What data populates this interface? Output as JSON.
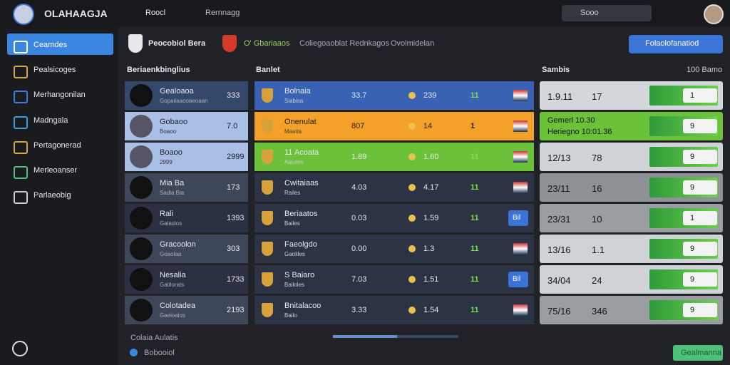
{
  "header": {
    "brand": "OLAHAAGJA",
    "nav": "Roocl",
    "tab": "Rernnagg",
    "search": "Sooo"
  },
  "sidebar": {
    "items": [
      "Ceamdes",
      "Pealsicoges",
      "Merhangonilan",
      "Madngala",
      "Pertagonerad",
      "Merleoanser",
      "Parlaeobig"
    ]
  },
  "subheader": {
    "team": "Peocobiol Bera",
    "tabs": [
      "O' Gbariaaos",
      "Coliegoaoblat Rednkagos",
      "Ovolmidelan"
    ],
    "button": "Folaolofanatiod"
  },
  "left": {
    "title": "Beriaenkbinglius",
    "rows": [
      {
        "name": "Gealoaoa",
        "sub": "Gopaiiaaooaeoaan",
        "value": "333"
      },
      {
        "name": "Gobaoo",
        "sub": "Boaoo",
        "value": "7.0"
      },
      {
        "name": "Boaoo",
        "sub": "2999",
        "value": "2999"
      },
      {
        "name": "Mia Ba",
        "sub": "Sadia Bia",
        "value": "173"
      },
      {
        "name": "Rali",
        "sub": "Galaslos",
        "value": "1393"
      },
      {
        "name": "Gracoolon",
        "sub": "Goaolaa",
        "value": "303"
      },
      {
        "name": "Nesalia",
        "sub": "Gatilorats",
        "value": "1733"
      },
      {
        "name": "Colotadea",
        "sub": "Gaeloalos",
        "value": "2193"
      }
    ]
  },
  "middle": {
    "title": "Banlet",
    "rows": [
      {
        "name": "Bolnaia",
        "sub": "Siabisa",
        "v1": "33.7",
        "v2": "239",
        "v3": "11"
      },
      {
        "name": "Onenulat",
        "sub": "Maaita",
        "v1": "807",
        "v2": "14",
        "v3": "1"
      },
      {
        "name": "11 Acoata",
        "sub": "Aiaoles",
        "v1": "1.89",
        "v2": "1.60",
        "v3": "11"
      },
      {
        "name": "Cwitaiaas",
        "sub": "Railes",
        "v1": "4.03",
        "v2": "4.17",
        "v3": "11"
      },
      {
        "name": "Beriaatos",
        "sub": "Bailes",
        "v1": "0.03",
        "v2": "1.59",
        "v3": "11",
        "badge": "Bil"
      },
      {
        "name": "Faeolgdo",
        "sub": "Gaoliles",
        "v1": "0.00",
        "v2": "1.3",
        "v3": "11"
      },
      {
        "name": "S Baiaro",
        "sub": "Bailoles",
        "v1": "7.03",
        "v2": "1.51",
        "v3": "11",
        "badge": "Bil"
      },
      {
        "name": "Bnitalacoo",
        "sub": "Bailo",
        "v1": "3.33",
        "v2": "1.54",
        "v3": "11"
      }
    ]
  },
  "right": {
    "title": "Sambis",
    "subtitle": "100 Bamo",
    "rows": [
      {
        "a": "1.9.11",
        "b": "17",
        "badge": "1"
      },
      {
        "a": "Gemerl 10.30",
        "b": "Heriegno 10:01.36",
        "badge": "9"
      },
      {
        "a": "12/13",
        "b": "78",
        "badge": "9"
      },
      {
        "a": "23/11",
        "b": "16",
        "badge": "9"
      },
      {
        "a": "23/31",
        "b": "10",
        "badge": "1"
      },
      {
        "a": "13/16",
        "b": "1.1",
        "badge": "9"
      },
      {
        "a": "34/04",
        "b": "24",
        "badge": "9"
      },
      {
        "a": "75/16",
        "b": "346",
        "badge": "9"
      }
    ]
  },
  "footer": {
    "section": "Colaia Aulatis",
    "status": "Bobooiol",
    "button": "Gealmanna"
  }
}
